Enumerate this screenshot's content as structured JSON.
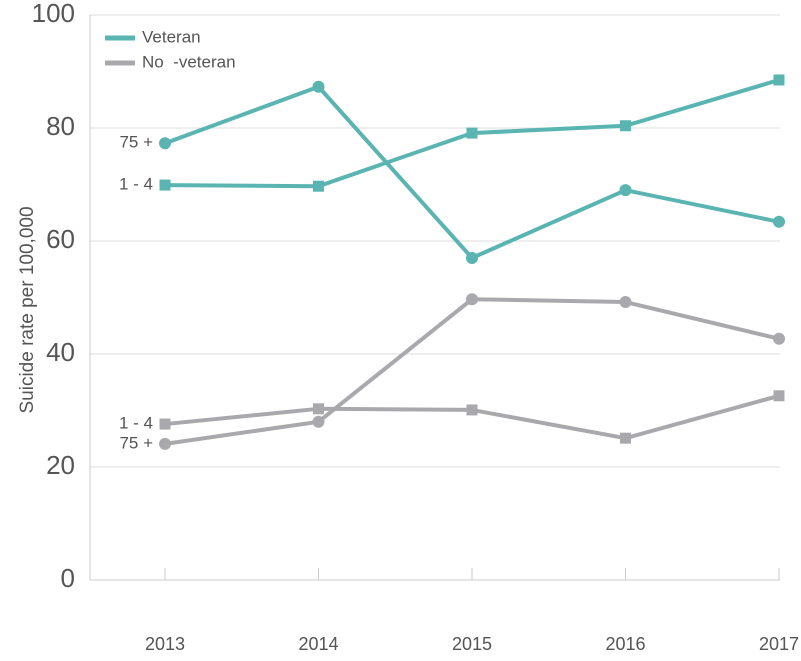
{
  "chart_data": {
    "type": "line",
    "x": [
      2013,
      2014,
      2015,
      2016,
      2017
    ],
    "ylabel": "Suicide rate per 100,000",
    "ylim": [
      0,
      100
    ],
    "yticks": [
      0,
      20,
      40,
      60,
      80,
      100
    ],
    "grid": true,
    "legend": "upper left",
    "series": [
      {
        "name": "Veteran",
        "label": "75 +",
        "marker": "circle",
        "color": "#5ab4b2",
        "values": [
          77.3,
          87.3,
          57.0,
          69.0,
          63.4
        ]
      },
      {
        "name": "Veteran",
        "label": "1 - 4",
        "marker": "square",
        "color": "#5ab4b2",
        "values": [
          69.9,
          69.7,
          79.1,
          80.4,
          88.5
        ]
      },
      {
        "name": "No  -veteran",
        "label": "75 +",
        "marker": "circle",
        "color": "#a9a8ad",
        "values": [
          24.1,
          28.0,
          49.7,
          49.2,
          42.7
        ]
      },
      {
        "name": "No  -veteran",
        "label": "1 - 4",
        "marker": "square",
        "color": "#a9a8ad",
        "values": [
          27.6,
          30.3,
          30.1,
          25.1,
          32.6
        ]
      }
    ]
  }
}
